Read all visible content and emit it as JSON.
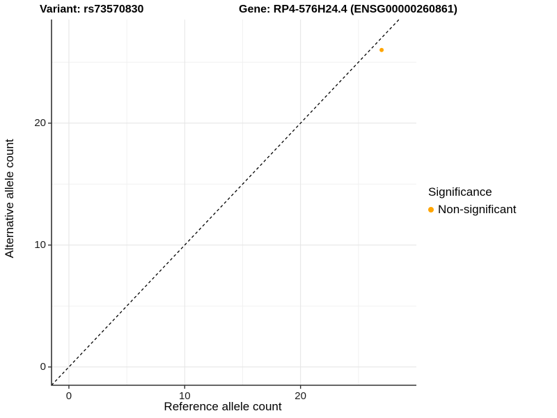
{
  "chart_data": {
    "type": "scatter",
    "title_left": "Variant: rs73570830",
    "title_right": "Gene: RP4-576H24.4 (ENSG00000260861)",
    "xlabel": "Reference allele count",
    "ylabel": "Alternative allele count",
    "xlim": [
      -1.5,
      30
    ],
    "ylim": [
      -1.5,
      28.5
    ],
    "x_ticks": [
      0,
      10,
      20
    ],
    "y_ticks": [
      0,
      10,
      20
    ],
    "x_minor_gridlines": [
      5,
      15,
      25
    ],
    "y_minor_gridlines": [
      5,
      15,
      25
    ],
    "grid": true,
    "points": [
      {
        "x": 27,
        "y": 26,
        "series": "Non-significant"
      }
    ],
    "identity_line": {
      "equation": "y = x",
      "style": "dashed",
      "color": "#000000"
    },
    "legend": {
      "title": "Significance",
      "position": "right",
      "items": [
        {
          "label": "Non-significant",
          "color": "#FFA500"
        }
      ]
    },
    "colors": {
      "major_grid": "#E4E4E4",
      "minor_grid": "#F1F1F1",
      "axis_line": "#333333",
      "tick_mark": "#333333",
      "point": "#FFA500",
      "background": "#FFFFFF"
    }
  }
}
